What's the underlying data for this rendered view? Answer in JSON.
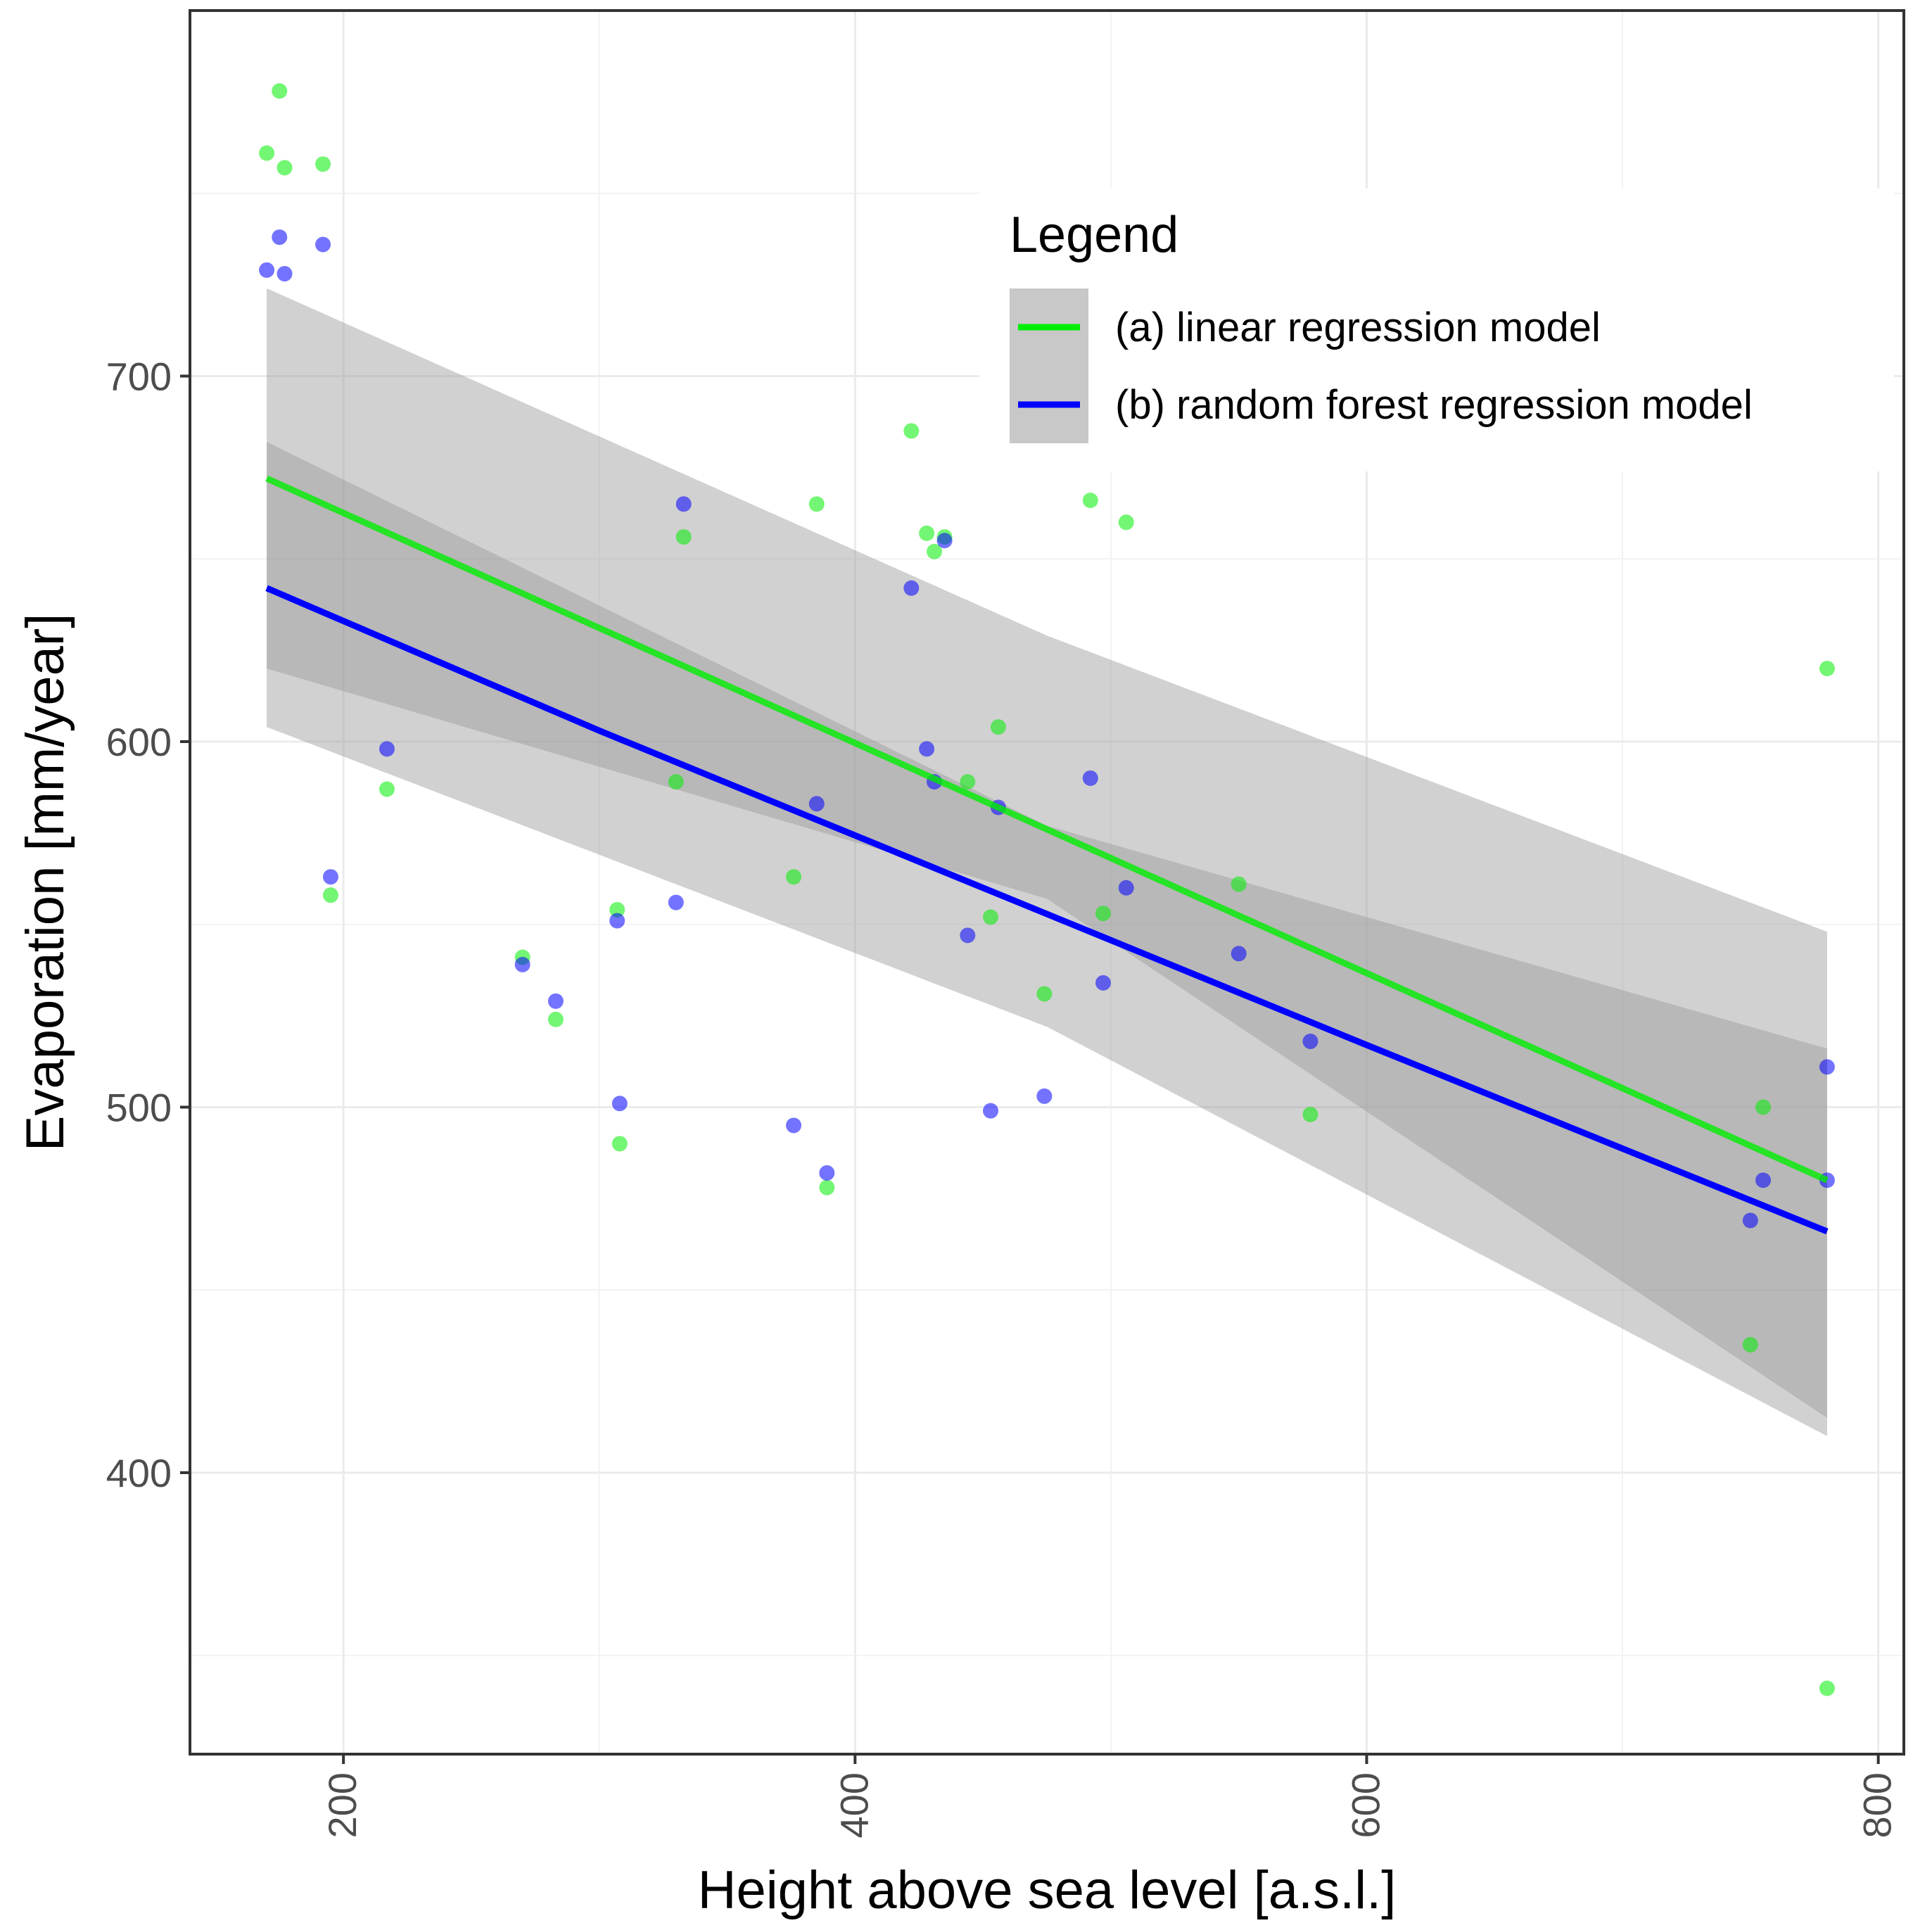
{
  "chart_data": {
    "type": "scatter",
    "title": "",
    "xlabel": "Height above sea level [a.s.l.]",
    "ylabel": "Evaporation [mm/year]",
    "xlim": [
      140,
      810
    ],
    "ylim": [
      323,
      800
    ],
    "x_ticks": [
      200,
      400,
      600,
      800
    ],
    "y_ticks": [
      400,
      500,
      600,
      700
    ],
    "x_minor_grid": [
      300,
      500,
      700
    ],
    "y_minor_grid": [
      350,
      450,
      550,
      650,
      750
    ],
    "grid": true,
    "legend": {
      "title": "Legend",
      "position": "top-right",
      "entries": [
        {
          "label": "(a) linear regression model",
          "color": "#00ee00"
        },
        {
          "label": "(b) random forest regression model",
          "color": "#0000ff"
        }
      ]
    },
    "series": [
      {
        "name": "(a) linear regression model",
        "color": "#00ee00",
        "points": [
          [
            170,
            761
          ],
          [
            175,
            778
          ],
          [
            177,
            757
          ],
          [
            192,
            758
          ],
          [
            195,
            558
          ],
          [
            217,
            587
          ],
          [
            270,
            541
          ],
          [
            283,
            524
          ],
          [
            307,
            554
          ],
          [
            308,
            490
          ],
          [
            330,
            589
          ],
          [
            333,
            656
          ],
          [
            376,
            563
          ],
          [
            385,
            665
          ],
          [
            389,
            478
          ],
          [
            422,
            685
          ],
          [
            428,
            657
          ],
          [
            431,
            652
          ],
          [
            435,
            656
          ],
          [
            444,
            589
          ],
          [
            453,
            552
          ],
          [
            456,
            604
          ],
          [
            474,
            531
          ],
          [
            492,
            666
          ],
          [
            497,
            553
          ],
          [
            506,
            660
          ],
          [
            550,
            561
          ],
          [
            578,
            498
          ],
          [
            750,
            435
          ],
          [
            755,
            500
          ],
          [
            780,
            620
          ],
          [
            780,
            341
          ]
        ],
        "fit": [
          [
            170,
            672
          ],
          [
            780,
            480
          ]
        ],
        "ci_upper": [
          [
            170,
            724
          ],
          [
            475,
            629
          ],
          [
            780,
            548
          ]
        ],
        "ci_lower": [
          [
            170,
            604
          ],
          [
            475,
            522
          ],
          [
            780,
            410
          ]
        ]
      },
      {
        "name": "(b) random forest regression model",
        "color": "#0000ff",
        "points": [
          [
            170,
            729
          ],
          [
            175,
            738
          ],
          [
            177,
            728
          ],
          [
            192,
            736
          ],
          [
            195,
            563
          ],
          [
            217,
            598
          ],
          [
            270,
            539
          ],
          [
            283,
            529
          ],
          [
            307,
            551
          ],
          [
            308,
            501
          ],
          [
            330,
            556
          ],
          [
            333,
            665
          ],
          [
            376,
            495
          ],
          [
            385,
            583
          ],
          [
            389,
            482
          ],
          [
            422,
            642
          ],
          [
            428,
            598
          ],
          [
            431,
            589
          ],
          [
            435,
            655
          ],
          [
            444,
            547
          ],
          [
            453,
            499
          ],
          [
            456,
            582
          ],
          [
            474,
            503
          ],
          [
            492,
            590
          ],
          [
            497,
            534
          ],
          [
            506,
            560
          ],
          [
            550,
            542
          ],
          [
            578,
            518
          ],
          [
            750,
            469
          ],
          [
            755,
            480
          ],
          [
            780,
            511
          ],
          [
            780,
            480
          ]
        ],
        "fit": [
          [
            170,
            642
          ],
          [
            300,
            603
          ],
          [
            450,
            560
          ],
          [
            600,
            517
          ],
          [
            780,
            466
          ]
        ],
        "ci_upper": [
          [
            170,
            682
          ],
          [
            475,
            577
          ],
          [
            780,
            516
          ]
        ],
        "ci_lower": [
          [
            170,
            620
          ],
          [
            475,
            557
          ],
          [
            780,
            415
          ]
        ]
      }
    ]
  }
}
